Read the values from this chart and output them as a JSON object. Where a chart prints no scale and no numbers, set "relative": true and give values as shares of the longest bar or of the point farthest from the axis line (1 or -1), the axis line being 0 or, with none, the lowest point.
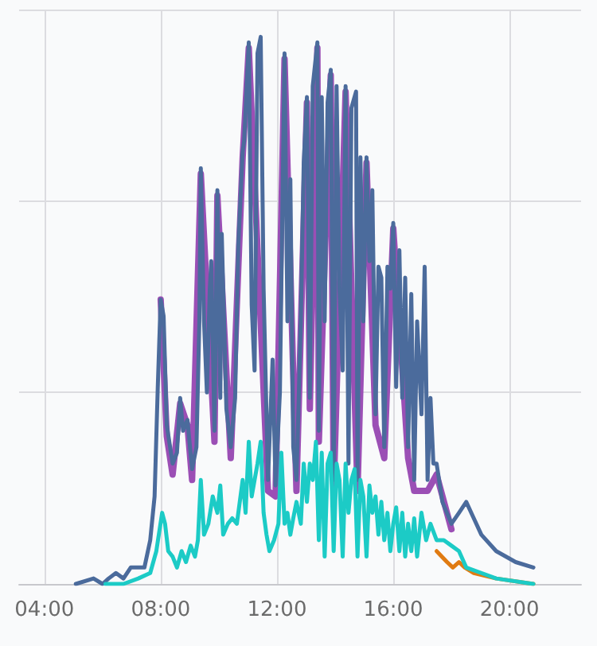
{
  "chart_data": {
    "type": "line",
    "relative": true,
    "grid": true,
    "marker": "none",
    "line_style": "solid",
    "xlim": [
      3.13,
      22.46
    ],
    "xticks": [
      {
        "value": 4,
        "label": "04:00"
      },
      {
        "value": 8,
        "label": "08:00"
      },
      {
        "value": 12,
        "label": "12:00"
      },
      {
        "value": 16,
        "label": "16:00"
      },
      {
        "value": 20,
        "label": "20:00"
      }
    ],
    "series": [
      {
        "color": "#9b4fb5",
        "x": [
          8.0,
          8.21,
          8.41,
          8.67,
          8.92,
          9.08,
          9.38,
          9.85,
          9.95,
          10.41,
          10.82,
          11.03,
          11.69,
          11.95,
          12.26,
          12.67,
          13.03,
          13.13,
          13.39,
          13.44,
          13.85,
          13.95,
          14.36,
          14.77,
          15.08,
          15.39,
          15.69,
          16.0,
          16.51,
          16.72,
          17.18,
          17.49,
          18.0
        ],
        "values": [
          0.52,
          0.27,
          0.2,
          0.33,
          0.29,
          0.19,
          0.75,
          0.26,
          0.71,
          0.23,
          0.78,
          0.98,
          0.17,
          0.16,
          0.96,
          0.17,
          0.88,
          0.32,
          0.98,
          0.26,
          0.93,
          0.17,
          0.9,
          0.17,
          0.77,
          0.29,
          0.23,
          0.65,
          0.23,
          0.17,
          0.17,
          0.2,
          0.1
        ]
      },
      {
        "color": "#4b6b9c",
        "x": [
          5.08,
          5.69,
          6.0,
          6.21,
          6.46,
          6.72,
          6.97,
          7.23,
          7.44,
          7.64,
          7.79,
          7.9,
          8.0,
          8.1,
          8.21,
          8.41,
          8.56,
          8.67,
          8.77,
          8.92,
          9.08,
          9.23,
          9.33,
          9.38,
          9.49,
          9.59,
          9.69,
          9.74,
          9.85,
          9.95,
          10.05,
          10.1,
          10.26,
          10.41,
          10.56,
          10.67,
          10.82,
          10.87,
          11.03,
          11.13,
          11.23,
          11.33,
          11.44,
          11.54,
          11.69,
          11.85,
          11.95,
          12.1,
          12.26,
          12.36,
          12.46,
          12.56,
          12.67,
          12.82,
          12.92,
          13.03,
          13.13,
          13.23,
          13.39,
          13.44,
          13.54,
          13.64,
          13.74,
          13.85,
          13.95,
          14.05,
          14.15,
          14.26,
          14.36,
          14.46,
          14.56,
          14.72,
          14.77,
          14.87,
          14.97,
          15.08,
          15.18,
          15.28,
          15.39,
          15.49,
          15.59,
          15.69,
          15.8,
          15.9,
          16.0,
          16.1,
          16.21,
          16.31,
          16.41,
          16.51,
          16.62,
          16.72,
          16.82,
          16.97,
          17.08,
          17.18,
          17.28,
          17.38,
          17.49,
          17.69,
          18.0,
          18.26,
          18.51,
          18.77,
          19.03,
          19.54,
          20.21,
          20.82
        ],
        "values": [
          0,
          0.01,
          0.0,
          0.01,
          0.02,
          0.01,
          0.03,
          0.03,
          0.03,
          0.08,
          0.16,
          0.36,
          0.52,
          0.49,
          0.29,
          0.22,
          0.24,
          0.34,
          0.28,
          0.3,
          0.21,
          0.25,
          0.48,
          0.76,
          0.48,
          0.35,
          0.54,
          0.59,
          0.28,
          0.72,
          0.34,
          0.64,
          0.32,
          0.25,
          0.34,
          0.62,
          0.79,
          0.81,
          0.99,
          0.51,
          0.39,
          0.97,
          1.0,
          0.54,
          0.19,
          0.41,
          0.18,
          0.35,
          0.97,
          0.48,
          0.74,
          0.25,
          0.19,
          0.48,
          0.77,
          0.89,
          0.34,
          0.91,
          0.99,
          0.28,
          0.89,
          0.48,
          0.88,
          0.94,
          0.19,
          0.91,
          0.54,
          0.39,
          0.91,
          0.22,
          0.87,
          0.9,
          0.19,
          0.78,
          0.48,
          0.78,
          0.59,
          0.72,
          0.31,
          0.58,
          0.56,
          0.25,
          0.58,
          0.54,
          0.66,
          0.36,
          0.61,
          0.34,
          0.56,
          0.25,
          0.53,
          0.19,
          0.48,
          0.31,
          0.58,
          0.19,
          0.34,
          0.22,
          0.22,
          0.15,
          0.11,
          0.13,
          0.15,
          0.12,
          0.09,
          0.06,
          0.04,
          0.03
        ]
      },
      {
        "color": "#e07b12",
        "x": [
          17.49,
          17.85,
          18.05,
          18.26,
          18.46,
          18.77,
          19.54,
          20.82
        ],
        "values": [
          0.06,
          0.04,
          0.03,
          0.04,
          0.03,
          0.02,
          0.01,
          0.0
        ]
      },
      {
        "color": "#1ccbc6",
        "x": [
          6.1,
          6.72,
          7.23,
          7.64,
          7.85,
          8.05,
          8.15,
          8.26,
          8.41,
          8.56,
          8.72,
          8.87,
          9.03,
          9.18,
          9.28,
          9.38,
          9.49,
          9.64,
          9.79,
          9.95,
          10.05,
          10.15,
          10.31,
          10.46,
          10.62,
          10.72,
          10.82,
          10.92,
          11.03,
          11.13,
          11.23,
          11.33,
          11.44,
          11.54,
          11.64,
          11.74,
          11.9,
          12.05,
          12.15,
          12.26,
          12.36,
          12.46,
          12.56,
          12.67,
          12.82,
          12.92,
          13.03,
          13.13,
          13.23,
          13.34,
          13.44,
          13.54,
          13.64,
          13.74,
          13.85,
          13.95,
          14.05,
          14.15,
          14.26,
          14.36,
          14.46,
          14.56,
          14.67,
          14.77,
          14.87,
          14.97,
          15.08,
          15.18,
          15.28,
          15.39,
          15.49,
          15.59,
          15.69,
          15.8,
          15.9,
          16.0,
          16.1,
          16.21,
          16.31,
          16.41,
          16.51,
          16.62,
          16.72,
          16.82,
          16.97,
          17.13,
          17.28,
          17.49,
          17.74,
          18.0,
          18.26,
          18.51,
          19.03,
          19.54,
          20.82
        ],
        "values": [
          0,
          0.0,
          0.01,
          0.02,
          0.06,
          0.13,
          0.11,
          0.06,
          0.05,
          0.03,
          0.06,
          0.04,
          0.07,
          0.05,
          0.08,
          0.19,
          0.09,
          0.11,
          0.16,
          0.13,
          0.18,
          0.09,
          0.11,
          0.12,
          0.11,
          0.15,
          0.19,
          0.13,
          0.26,
          0.16,
          0.19,
          0.22,
          0.26,
          0.13,
          0.09,
          0.06,
          0.08,
          0.11,
          0.24,
          0.11,
          0.13,
          0.09,
          0.12,
          0.15,
          0.11,
          0.22,
          0.15,
          0.22,
          0.19,
          0.26,
          0.08,
          0.24,
          0.05,
          0.22,
          0.24,
          0.06,
          0.22,
          0.19,
          0.05,
          0.22,
          0.13,
          0.19,
          0.21,
          0.05,
          0.19,
          0.16,
          0.05,
          0.18,
          0.13,
          0.16,
          0.09,
          0.15,
          0.08,
          0.13,
          0.06,
          0.11,
          0.14,
          0.06,
          0.13,
          0.05,
          0.11,
          0.06,
          0.12,
          0.05,
          0.13,
          0.08,
          0.11,
          0.08,
          0.08,
          0.07,
          0.06,
          0.03,
          0.02,
          0.01,
          0.0
        ]
      }
    ]
  }
}
